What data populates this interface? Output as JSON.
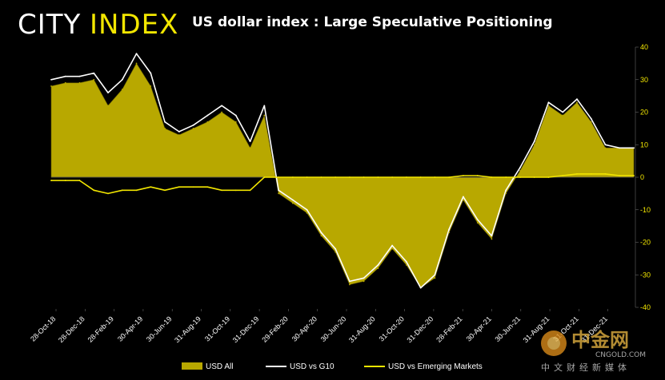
{
  "brand": {
    "text_a": "CITY",
    "text_b": "INDEX",
    "color_a": "#ffffff",
    "color_b": "#f2e600"
  },
  "chart_data": {
    "type": "area",
    "title": "US dollar index : Large Speculative Positioning",
    "xlabel": "",
    "ylabel": "",
    "ylim": [
      -40,
      40
    ],
    "y_ticks": [
      -40,
      -30,
      -20,
      -10,
      0,
      10,
      20,
      30,
      40
    ],
    "y_axis_position": "right",
    "grid": false,
    "legend_position": "bottom",
    "x_tick_labels": [
      "28-Oct-18",
      "28-Dec-18",
      "28-Feb-19",
      "30-Apr-19",
      "30-Jun-19",
      "31-Aug-19",
      "31-Oct-19",
      "31-Dec-19",
      "29-Feb-20",
      "30-Apr-20",
      "30-Jun-20",
      "31-Aug-20",
      "31-Oct-20",
      "31-Dec-20",
      "28-Feb-21",
      "30-Apr-21",
      "30-Jun-21",
      "31-Aug-21",
      "31-Oct-21",
      "31-Dec-21"
    ],
    "x": [
      "2018-10-28",
      "2018-11-25",
      "2018-12-23",
      "2019-01-20",
      "2019-02-17",
      "2019-03-17",
      "2019-04-14",
      "2019-05-12",
      "2019-06-09",
      "2019-07-07",
      "2019-08-04",
      "2019-09-01",
      "2019-09-29",
      "2019-10-27",
      "2019-11-24",
      "2019-12-22",
      "2020-01-19",
      "2020-02-16",
      "2020-03-15",
      "2020-04-12",
      "2020-05-10",
      "2020-06-07",
      "2020-07-05",
      "2020-08-02",
      "2020-08-30",
      "2020-09-27",
      "2020-10-25",
      "2020-11-22",
      "2020-12-20",
      "2021-01-17",
      "2021-02-14",
      "2021-03-14",
      "2021-04-11",
      "2021-05-09",
      "2021-06-06",
      "2021-07-04",
      "2021-08-01",
      "2021-08-29",
      "2021-09-26",
      "2021-10-24",
      "2021-11-21",
      "2021-12-19"
    ],
    "series": [
      {
        "name": "USD All",
        "color": "#b8a800",
        "style": "area",
        "values": [
          28,
          29,
          29,
          30,
          22,
          27,
          35,
          28,
          15,
          13,
          15,
          17,
          20,
          17,
          9,
          19,
          -5,
          -8,
          -11,
          -18,
          -23,
          -33,
          -32,
          -28,
          -22,
          -27,
          -34,
          -31,
          -17,
          -7,
          -14,
          -19,
          -5,
          2,
          10,
          22,
          19,
          23,
          17,
          9,
          9,
          9
        ]
      },
      {
        "name": "USD vs G10",
        "color": "#ffffff",
        "style": "line",
        "values": [
          30,
          31,
          31,
          32,
          26,
          30,
          38,
          32,
          17,
          14,
          16,
          19,
          22,
          19,
          11,
          22,
          -4,
          -7,
          -10,
          -17,
          -22,
          -32,
          -31,
          -27,
          -21,
          -26,
          -34,
          -30,
          -16,
          -6,
          -13,
          -18,
          -4,
          3,
          11,
          23,
          20,
          24,
          18,
          10,
          9,
          9
        ]
      },
      {
        "name": "USD vs Emerging Markets",
        "color": "#f2e600",
        "style": "line",
        "values": [
          -1,
          -1,
          -1,
          -4,
          -5,
          -4,
          -4,
          -3,
          -4,
          -3,
          -3,
          -3,
          -4,
          -4,
          -4,
          0,
          0,
          0,
          0,
          0,
          0,
          0,
          0,
          0,
          0,
          0,
          0,
          0,
          0,
          0.5,
          0.5,
          0,
          0,
          0,
          0,
          0,
          0.5,
          1,
          1,
          1,
          0.5,
          0.5
        ]
      }
    ]
  },
  "watermark": {
    "main": "中金网",
    "sub": "CNGOLD.COM",
    "cn": "中文财经新媒体"
  }
}
